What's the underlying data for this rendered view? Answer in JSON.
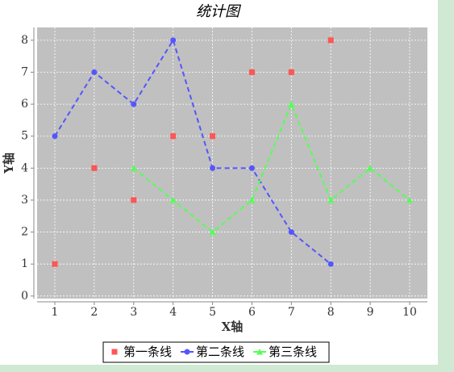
{
  "chart_data": {
    "type": "line",
    "title": "统计图",
    "x_label": "X轴",
    "y_label": "Y轴",
    "x": [
      1,
      2,
      3,
      4,
      5,
      6,
      7,
      8,
      9,
      10
    ],
    "series": [
      {
        "name": "第一条线",
        "color": "#ff5555",
        "marker": "square",
        "show_line": false,
        "values": [
          1,
          4,
          3,
          5,
          5,
          7,
          7,
          8,
          null,
          null
        ]
      },
      {
        "name": "第二条线",
        "color": "#5555ff",
        "marker": "circle",
        "show_line": true,
        "values": [
          5,
          7,
          6,
          8,
          4,
          4,
          2,
          1,
          null,
          null
        ]
      },
      {
        "name": "第三条线",
        "color": "#55ff55",
        "marker": "triangle",
        "show_line": true,
        "values": [
          null,
          null,
          4,
          3,
          2,
          3,
          6,
          3,
          4,
          3
        ]
      }
    ],
    "xlim": [
      0.55,
      10.45
    ],
    "xticks": [
      1,
      2,
      3,
      4,
      5,
      6,
      7,
      8,
      9,
      10
    ],
    "ylim": [
      -0.08,
      8.4
    ],
    "yticks": [
      0,
      1,
      2,
      3,
      4,
      5,
      6,
      7,
      8
    ],
    "grid": true,
    "legend": "bottom"
  }
}
